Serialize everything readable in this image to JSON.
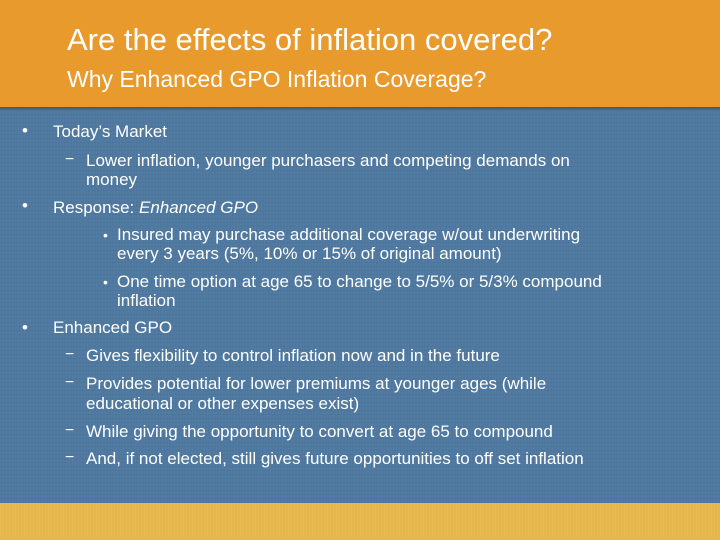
{
  "header": {
    "title": "Are the effects of inflation covered?",
    "subtitle": "Why Enhanced GPO Inflation Coverage?"
  },
  "bullets": {
    "b1": "Today’s Market",
    "b1_d1_l1": "Lower inflation, younger purchasers and competing demands on",
    "b1_d1_l2": "money",
    "b2_prefix": "Response: ",
    "b2_italic": "Enhanced GPO",
    "b2_s1_l1": "Insured may purchase additional coverage w/out underwriting",
    "b2_s1_l2": "every 3 years (5%, 10% or 15% of original amount)",
    "b2_s2_l1": "One time option at age 65 to change to 5/5% or 5/3% compound",
    "b2_s2_l2": "inflation",
    "b3": "Enhanced GPO",
    "b3_d1": "Gives flexibility to control inflation now and in the future",
    "b3_d2_l1": "Provides potential for lower premiums at younger ages (while",
    "b3_d2_l2": "educational or other expenses exist)",
    "b3_d3": "While giving the opportunity to convert at age 65 to compound",
    "b3_d4": "And, if not elected, still gives future opportunities to off set inflation"
  },
  "markers": {
    "bullet": "•",
    "dash": "−"
  },
  "colors": {
    "header": "#e89a2c",
    "body": "#4f79a0",
    "footer": "#e6b64a",
    "text": "#ffffff"
  }
}
